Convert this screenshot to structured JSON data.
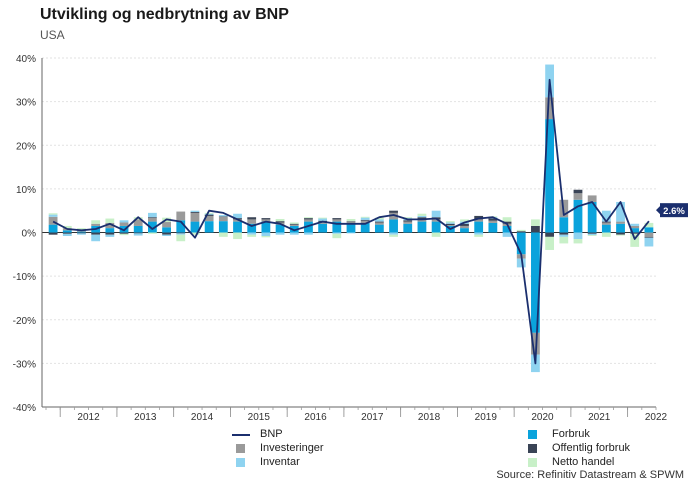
{
  "title": "Utvikling og nedbrytning av BNP",
  "subtitle": "USA",
  "source": "Source: Refinitiv Datastream & SPWM",
  "chart_data": {
    "type": "bar",
    "stacked": true,
    "x_tick_labels": [
      "2012",
      "2013",
      "2014",
      "2015",
      "2016",
      "2017",
      "2018",
      "2019",
      "2020",
      "2021",
      "2022"
    ],
    "quarters": [
      "2011Q4",
      "2012Q1",
      "2012Q2",
      "2012Q3",
      "2012Q4",
      "2013Q1",
      "2013Q2",
      "2013Q3",
      "2013Q4",
      "2014Q1",
      "2014Q2",
      "2014Q3",
      "2014Q4",
      "2015Q1",
      "2015Q2",
      "2015Q3",
      "2015Q4",
      "2016Q1",
      "2016Q2",
      "2016Q3",
      "2016Q4",
      "2017Q1",
      "2017Q2",
      "2017Q3",
      "2017Q4",
      "2018Q1",
      "2018Q2",
      "2018Q3",
      "2018Q4",
      "2019Q1",
      "2019Q2",
      "2019Q3",
      "2019Q4",
      "2020Q1",
      "2020Q2",
      "2020Q3",
      "2020Q4",
      "2021Q1",
      "2021Q2",
      "2021Q3",
      "2021Q4",
      "2022Q1",
      "2022Q2"
    ],
    "y_tick_labels": [
      "40%",
      "30%",
      "20%",
      "10%",
      "0%",
      "-10%",
      "-20%",
      "-30%",
      "-40%"
    ],
    "ylim": [
      -40,
      40
    ],
    "last_value_label": "2.6%",
    "series": [
      {
        "name": "Forbruk",
        "color": "#0aa3dc",
        "values": [
          1.8,
          0.5,
          0.2,
          1.5,
          1.0,
          1.5,
          1.5,
          2.5,
          1.2,
          2.8,
          2.5,
          2.6,
          2.6,
          2.5,
          2.0,
          2.5,
          1.8,
          1.5,
          2.5,
          2.0,
          2.5,
          2.0,
          2.2,
          1.8,
          3.0,
          2.0,
          2.5,
          2.5,
          1.5,
          1.0,
          2.5,
          2.2,
          1.5,
          -5.0,
          -23.0,
          26.0,
          3.5,
          7.5,
          7.0,
          1.8,
          2.0,
          1.0,
          1.2
        ]
      },
      {
        "name": "Investeringer",
        "color": "#9a9a9a",
        "values": [
          1.8,
          0.5,
          0.5,
          0.5,
          1.2,
          0.8,
          1.5,
          0.8,
          1.2,
          2.0,
          2.0,
          1.2,
          1.0,
          0.5,
          1.0,
          0.5,
          0.5,
          0.3,
          0.5,
          0.5,
          0.5,
          0.5,
          0.5,
          0.5,
          1.5,
          0.5,
          0.5,
          0.5,
          0.2,
          0.5,
          0.5,
          0.5,
          0.5,
          -1.0,
          -5.0,
          5.0,
          4.0,
          1.5,
          1.5,
          0.5,
          0.5,
          0.5,
          -1.0
        ]
      },
      {
        "name": "Offentlig forbruk",
        "color": "#3a4456",
        "values": [
          -0.5,
          -0.3,
          -0.2,
          -0.5,
          -0.5,
          -0.3,
          -0.2,
          0.2,
          -0.5,
          -0.2,
          0.2,
          0.3,
          0.1,
          0.3,
          0.5,
          0.3,
          0.3,
          0.2,
          0.3,
          0.2,
          0.3,
          0.1,
          0.2,
          0.2,
          0.5,
          0.3,
          0.5,
          0.5,
          0.3,
          0.5,
          0.8,
          0.5,
          0.5,
          0.3,
          1.5,
          -1.0,
          -0.5,
          0.8,
          -0.3,
          0.2,
          -0.5,
          -0.3,
          -0.2
        ]
      },
      {
        "name": "Inventar",
        "color": "#8fd3f0",
        "values": [
          0.5,
          -0.5,
          -0.3,
          -1.5,
          -0.5,
          0.5,
          -0.5,
          1.0,
          -0.3,
          -0.3,
          0.3,
          0.2,
          0.3,
          1.0,
          -0.5,
          -0.8,
          -0.5,
          -0.5,
          -0.5,
          0.5,
          -0.3,
          -0.2,
          0.5,
          0.5,
          -0.5,
          0.5,
          0.3,
          1.5,
          0.3,
          0.5,
          -0.5,
          0.3,
          -1.0,
          -2.0,
          -4.0,
          7.5,
          -0.5,
          -1.5,
          -0.3,
          2.5,
          4.5,
          0.5,
          -2.0
        ]
      },
      {
        "name": "Netto handel",
        "color": "#c8f0c8",
        "values": [
          0.3,
          0.5,
          0.3,
          0.8,
          1.0,
          -0.3,
          0.5,
          -0.3,
          1.0,
          -1.5,
          -0.5,
          0.2,
          -1.0,
          -1.5,
          -0.5,
          -0.3,
          0.5,
          0.3,
          0.2,
          0.2,
          -1.0,
          0.5,
          0.2,
          0.4,
          -0.5,
          0.2,
          0.5,
          -1.0,
          0.3,
          0.5,
          -0.5,
          0.2,
          1.0,
          0.3,
          1.5,
          -3.0,
          -1.5,
          -1.0,
          -0.2,
          -1.0,
          -0.2,
          -3.0,
          1.0
        ]
      }
    ],
    "line": {
      "name": "BNP",
      "color": "#1b2f6e",
      "values": [
        2.5,
        0.8,
        0.5,
        0.8,
        2.0,
        0.5,
        3.5,
        0.8,
        3.0,
        2.5,
        -1.2,
        5.0,
        4.5,
        3.0,
        1.5,
        2.5,
        2.0,
        0.5,
        1.5,
        2.5,
        2.0,
        2.0,
        2.0,
        3.5,
        4.0,
        3.0,
        3.0,
        3.2,
        0.8,
        2.3,
        3.2,
        3.5,
        2.0,
        -5.0,
        -30.0,
        35.0,
        4.0,
        6.0,
        7.0,
        2.5,
        7.0,
        -1.5,
        2.6
      ]
    }
  },
  "legend": {
    "bnp": "BNP",
    "investeringer": "Investeringer",
    "inventar": "Inventar",
    "forbruk": "Forbruk",
    "offentlig": "Offentlig forbruk",
    "netto": "Netto handel"
  }
}
